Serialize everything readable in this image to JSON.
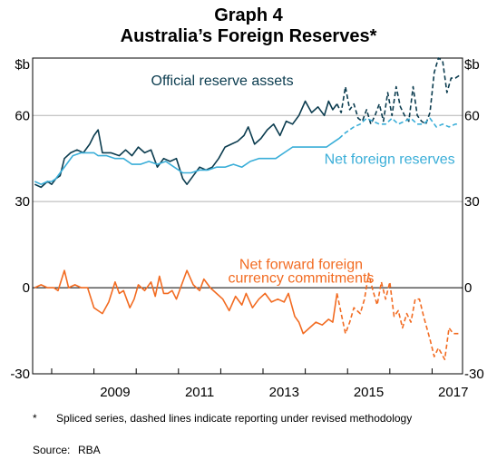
{
  "titles": {
    "graph": "Graph 4",
    "main": "Australia’s Foreign Reserves*"
  },
  "footnote": {
    "marker": "*",
    "text": "Spliced series, dashed lines indicate reporting under revised methodology"
  },
  "source": {
    "label": "Source:",
    "value": "RBA"
  },
  "colors": {
    "official": "#0b3c4f",
    "net": "#3aaed8",
    "forward": "#f26b21",
    "grid": "#b3b3b3",
    "zero": "#000000"
  },
  "chart_data": {
    "type": "line",
    "xlim": [
      2007.55,
      2017.72
    ],
    "ylim": [
      -30,
      80
    ],
    "xticks": [
      2009,
      2011,
      2013,
      2015,
      2017
    ],
    "xtick_labels": [
      "2009",
      "2011",
      "2013",
      "2015",
      "2017"
    ],
    "yticks": [
      -30,
      0,
      30,
      60
    ],
    "ytick_labels": [
      "-30",
      "0",
      "30",
      "60"
    ],
    "unit_label_left": "$b",
    "unit_label_right": "$b",
    "grid": "horizontal",
    "series": [
      {
        "name": "Official reserve assets",
        "color_key": "official",
        "solid": [
          [
            2007.6,
            36
          ],
          [
            2007.75,
            35
          ],
          [
            2007.9,
            37
          ],
          [
            2008.0,
            36
          ],
          [
            2008.1,
            38
          ],
          [
            2008.2,
            39
          ],
          [
            2008.3,
            45
          ],
          [
            2008.45,
            47
          ],
          [
            2008.6,
            48
          ],
          [
            2008.75,
            47
          ],
          [
            2008.9,
            50
          ],
          [
            2009.0,
            53
          ],
          [
            2009.1,
            55
          ],
          [
            2009.2,
            47
          ],
          [
            2009.4,
            47
          ],
          [
            2009.6,
            46
          ],
          [
            2009.75,
            48
          ],
          [
            2009.9,
            46
          ],
          [
            2010.05,
            49
          ],
          [
            2010.2,
            47
          ],
          [
            2010.35,
            48
          ],
          [
            2010.5,
            42
          ],
          [
            2010.65,
            45
          ],
          [
            2010.8,
            44
          ],
          [
            2010.95,
            45
          ],
          [
            2011.1,
            38
          ],
          [
            2011.2,
            36
          ],
          [
            2011.35,
            39
          ],
          [
            2011.5,
            42
          ],
          [
            2011.65,
            41
          ],
          [
            2011.8,
            42
          ],
          [
            2011.95,
            45
          ],
          [
            2012.1,
            49
          ],
          [
            2012.25,
            50
          ],
          [
            2012.4,
            51
          ],
          [
            2012.55,
            53
          ],
          [
            2012.65,
            56
          ],
          [
            2012.8,
            50
          ],
          [
            2012.95,
            52
          ],
          [
            2013.1,
            55
          ],
          [
            2013.25,
            57
          ],
          [
            2013.4,
            53
          ],
          [
            2013.55,
            58
          ],
          [
            2013.7,
            57
          ],
          [
            2013.85,
            60
          ],
          [
            2014.0,
            65
          ],
          [
            2014.15,
            61
          ],
          [
            2014.3,
            63
          ],
          [
            2014.45,
            60
          ],
          [
            2014.55,
            65
          ],
          [
            2014.65,
            62
          ],
          [
            2014.75,
            64
          ]
        ],
        "dashed": [
          [
            2014.75,
            64
          ],
          [
            2014.85,
            61
          ],
          [
            2014.95,
            70
          ],
          [
            2015.05,
            62
          ],
          [
            2015.15,
            64
          ],
          [
            2015.25,
            59
          ],
          [
            2015.35,
            58
          ],
          [
            2015.45,
            62
          ],
          [
            2015.55,
            57
          ],
          [
            2015.65,
            60
          ],
          [
            2015.75,
            64
          ],
          [
            2015.85,
            58
          ],
          [
            2015.95,
            68
          ],
          [
            2016.05,
            60
          ],
          [
            2016.15,
            70
          ],
          [
            2016.25,
            63
          ],
          [
            2016.35,
            60
          ],
          [
            2016.45,
            58
          ],
          [
            2016.55,
            70
          ],
          [
            2016.65,
            60
          ],
          [
            2016.75,
            58
          ],
          [
            2016.85,
            57
          ],
          [
            2016.95,
            61
          ],
          [
            2017.05,
            75
          ],
          [
            2017.15,
            80
          ],
          [
            2017.25,
            79
          ],
          [
            2017.35,
            68
          ],
          [
            2017.45,
            73
          ],
          [
            2017.55,
            73
          ],
          [
            2017.65,
            74
          ]
        ]
      },
      {
        "name": "Net foreign reserves",
        "color_key": "net",
        "solid": [
          [
            2007.6,
            37
          ],
          [
            2007.75,
            36
          ],
          [
            2007.9,
            37
          ],
          [
            2008.0,
            37
          ],
          [
            2008.1,
            38
          ],
          [
            2008.2,
            40
          ],
          [
            2008.35,
            43
          ],
          [
            2008.5,
            46
          ],
          [
            2008.7,
            47
          ],
          [
            2008.9,
            47
          ],
          [
            2009.0,
            47
          ],
          [
            2009.1,
            46
          ],
          [
            2009.3,
            46
          ],
          [
            2009.5,
            45
          ],
          [
            2009.7,
            45
          ],
          [
            2009.9,
            43
          ],
          [
            2010.1,
            43
          ],
          [
            2010.3,
            44
          ],
          [
            2010.5,
            43
          ],
          [
            2010.7,
            44
          ],
          [
            2010.9,
            42
          ],
          [
            2011.1,
            40
          ],
          [
            2011.3,
            40
          ],
          [
            2011.5,
            41
          ],
          [
            2011.7,
            41
          ],
          [
            2011.9,
            42
          ],
          [
            2012.1,
            42
          ],
          [
            2012.3,
            43
          ],
          [
            2012.5,
            42
          ],
          [
            2012.7,
            44
          ],
          [
            2012.9,
            45
          ],
          [
            2013.1,
            45
          ],
          [
            2013.3,
            45
          ],
          [
            2013.5,
            47
          ],
          [
            2013.7,
            49
          ],
          [
            2013.9,
            49
          ],
          [
            2014.1,
            49
          ],
          [
            2014.3,
            49
          ],
          [
            2014.5,
            49
          ],
          [
            2014.7,
            51
          ],
          [
            2014.8,
            52
          ]
        ],
        "dashed": [
          [
            2014.8,
            52
          ],
          [
            2014.95,
            54
          ],
          [
            2015.05,
            55
          ],
          [
            2015.15,
            56
          ],
          [
            2015.3,
            57
          ],
          [
            2015.45,
            59
          ],
          [
            2015.6,
            58
          ],
          [
            2015.75,
            57
          ],
          [
            2015.9,
            57
          ],
          [
            2016.05,
            59
          ],
          [
            2016.2,
            57
          ],
          [
            2016.35,
            58
          ],
          [
            2016.5,
            59
          ],
          [
            2016.65,
            57
          ],
          [
            2016.8,
            57
          ],
          [
            2016.95,
            59
          ],
          [
            2017.1,
            56
          ],
          [
            2017.25,
            57
          ],
          [
            2017.4,
            56
          ],
          [
            2017.55,
            57
          ],
          [
            2017.65,
            57
          ]
        ]
      },
      {
        "name": "Net forward foreign currency commitments",
        "color_key": "forward",
        "solid": [
          [
            2007.6,
            0
          ],
          [
            2007.75,
            1
          ],
          [
            2007.9,
            0
          ],
          [
            2008.05,
            0
          ],
          [
            2008.15,
            -1
          ],
          [
            2008.3,
            6
          ],
          [
            2008.4,
            0
          ],
          [
            2008.55,
            1
          ],
          [
            2008.7,
            0
          ],
          [
            2008.85,
            0
          ],
          [
            2009.0,
            -7
          ],
          [
            2009.1,
            -8
          ],
          [
            2009.2,
            -9
          ],
          [
            2009.35,
            -5
          ],
          [
            2009.5,
            2
          ],
          [
            2009.6,
            -2
          ],
          [
            2009.7,
            -1
          ],
          [
            2009.85,
            -7
          ],
          [
            2009.95,
            -4
          ],
          [
            2010.05,
            1
          ],
          [
            2010.2,
            -1
          ],
          [
            2010.35,
            2
          ],
          [
            2010.45,
            -3
          ],
          [
            2010.55,
            4
          ],
          [
            2010.65,
            -2
          ],
          [
            2010.75,
            -2
          ],
          [
            2010.85,
            -1
          ],
          [
            2010.95,
            -4
          ],
          [
            2011.05,
            0
          ],
          [
            2011.2,
            6
          ],
          [
            2011.35,
            1
          ],
          [
            2011.5,
            -1
          ],
          [
            2011.6,
            3
          ],
          [
            2011.75,
            0
          ],
          [
            2011.9,
            -2
          ],
          [
            2012.05,
            -4
          ],
          [
            2012.2,
            -8
          ],
          [
            2012.35,
            -3
          ],
          [
            2012.5,
            -6
          ],
          [
            2012.6,
            -2
          ],
          [
            2012.75,
            -7
          ],
          [
            2012.9,
            -4
          ],
          [
            2013.05,
            -2
          ],
          [
            2013.2,
            -5
          ],
          [
            2013.35,
            -4
          ],
          [
            2013.5,
            -5
          ],
          [
            2013.6,
            -2
          ],
          [
            2013.75,
            -10
          ],
          [
            2013.85,
            -12
          ],
          [
            2013.95,
            -16
          ],
          [
            2014.1,
            -14
          ],
          [
            2014.25,
            -12
          ],
          [
            2014.4,
            -13
          ],
          [
            2014.55,
            -11
          ],
          [
            2014.65,
            -12
          ],
          [
            2014.75,
            -2
          ]
        ],
        "dashed": [
          [
            2014.75,
            -2
          ],
          [
            2014.85,
            -9
          ],
          [
            2014.95,
            -16
          ],
          [
            2015.05,
            -12
          ],
          [
            2015.15,
            -7
          ],
          [
            2015.3,
            -9
          ],
          [
            2015.4,
            -4
          ],
          [
            2015.5,
            5
          ],
          [
            2015.6,
            -1
          ],
          [
            2015.7,
            -6
          ],
          [
            2015.8,
            2
          ],
          [
            2015.9,
            -4
          ],
          [
            2016.0,
            2
          ],
          [
            2016.1,
            -10
          ],
          [
            2016.2,
            -8
          ],
          [
            2016.3,
            -14
          ],
          [
            2016.4,
            -9
          ],
          [
            2016.5,
            -12
          ],
          [
            2016.6,
            -4
          ],
          [
            2016.7,
            -4
          ],
          [
            2016.8,
            -10
          ],
          [
            2016.95,
            -18
          ],
          [
            2017.05,
            -24
          ],
          [
            2017.15,
            -21
          ],
          [
            2017.3,
            -25
          ],
          [
            2017.4,
            -14
          ],
          [
            2017.5,
            -16
          ],
          [
            2017.65,
            -16
          ]
        ]
      }
    ],
    "annotations": [
      {
        "text": "Official reserve assets",
        "color_key": "official",
        "x": 2010.35,
        "y": 70.5,
        "anchor": "start"
      },
      {
        "text": "Net foreign reserves",
        "color_key": "net",
        "x": 2014.45,
        "y": 43.2,
        "anchor": "start"
      },
      {
        "text": "Net forward foreign",
        "color_key": "forward",
        "x": 2013.9,
        "y": 6.5,
        "anchor": "middle"
      },
      {
        "text": "currency commitments",
        "color_key": "forward",
        "x": 2013.9,
        "y": 1.8,
        "anchor": "middle"
      }
    ]
  }
}
